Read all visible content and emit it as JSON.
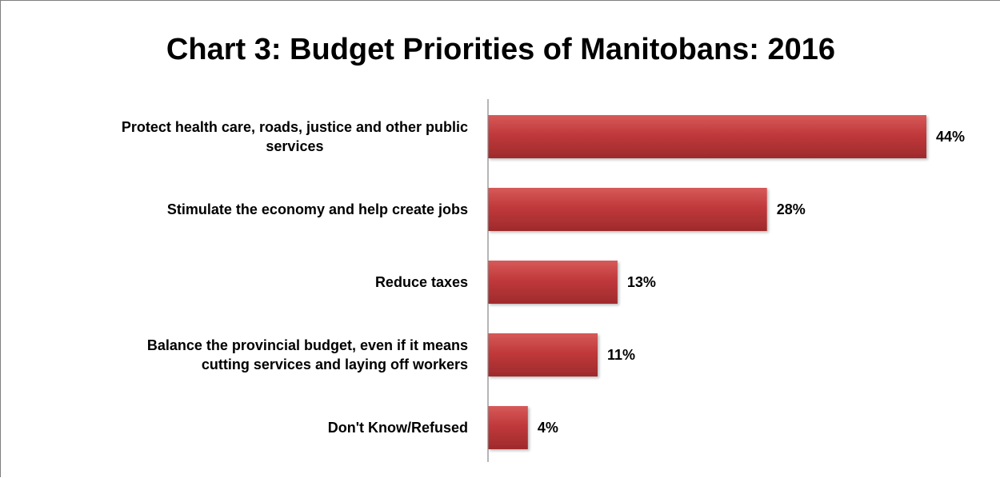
{
  "colors": {
    "bar": "#c0393b",
    "bar_light": "#d65a59",
    "bar_dark": "#9e2a2c",
    "axis": "#868686"
  },
  "chart_data": {
    "type": "bar",
    "orientation": "horizontal",
    "title": "Chart 3: Budget Priorities of Manitobans: 2016",
    "categories": [
      [
        "Protect health care, roads, justice and other public",
        "services"
      ],
      [
        "Stimulate the economy and help create jobs"
      ],
      [
        "Reduce taxes"
      ],
      [
        "Balance the provincial budget, even if it means",
        "cutting services and laying off workers"
      ],
      [
        "Don't Know/Refused"
      ]
    ],
    "values": [
      44,
      28,
      13,
      11,
      4
    ],
    "value_labels": [
      "44%",
      "28%",
      "13%",
      "11%",
      "4%"
    ],
    "unit": "%",
    "xlim": [
      0,
      50
    ],
    "grid": false,
    "legend": "none"
  }
}
